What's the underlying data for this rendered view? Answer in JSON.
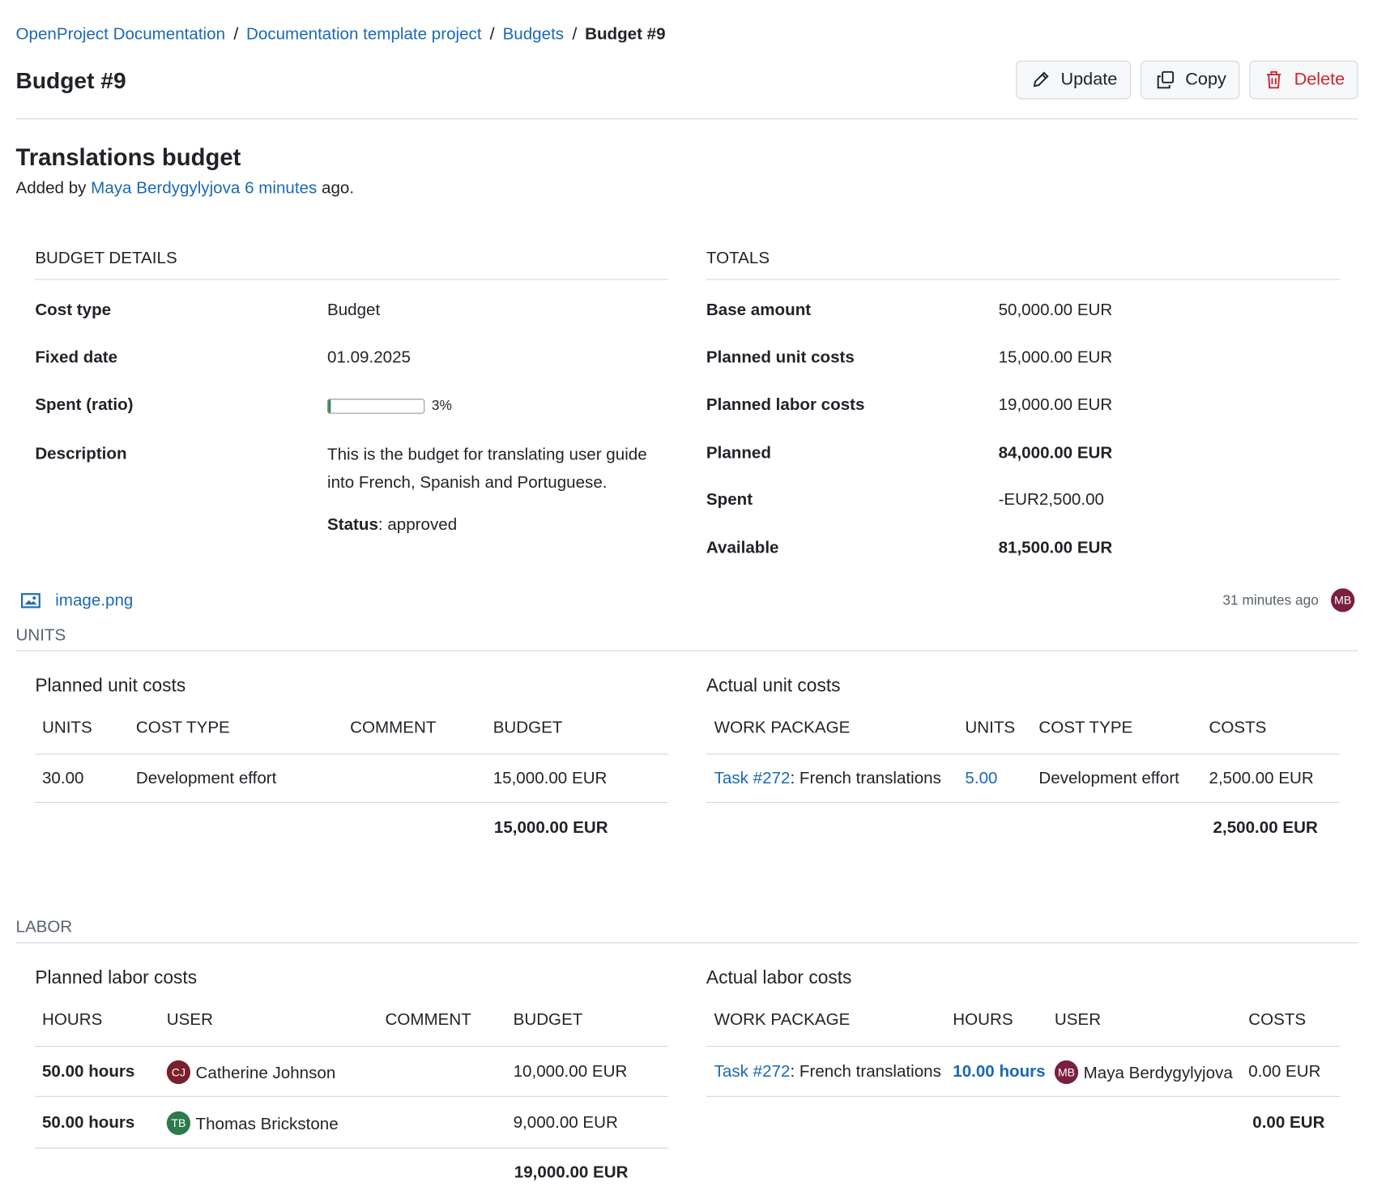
{
  "breadcrumb": {
    "items": [
      "OpenProject Documentation",
      "Documentation template project",
      "Budgets"
    ],
    "current": "Budget #9"
  },
  "header": {
    "title": "Budget #9",
    "buttons": {
      "update": "Update",
      "copy": "Copy",
      "delete": "Delete"
    }
  },
  "budget": {
    "subject": "Translations budget",
    "added_by": "Added by",
    "author": "Maya Berdygylyjova",
    "time": "6 minutes",
    "ago": "ago."
  },
  "details": {
    "heading": "BUDGET DETAILS",
    "cost_type_label": "Cost type",
    "cost_type": "Budget",
    "fixed_date_label": "Fixed date",
    "fixed_date": "01.09.2025",
    "spent_ratio_label": "Spent (ratio)",
    "spent_ratio": {
      "value": 3,
      "label": "3%"
    },
    "description_label": "Description",
    "description": "This is the budget for translating user guide into French, Spanish and Portuguese.",
    "status_label": "Status",
    "status": ": approved"
  },
  "totals": {
    "heading": "TOTALS",
    "rows": [
      {
        "label": "Base amount",
        "value": "50,000.00 EUR"
      },
      {
        "label": "Planned unit costs",
        "value": "15,000.00 EUR"
      },
      {
        "label": "Planned labor costs",
        "value": "19,000.00 EUR"
      },
      {
        "label": "Planned",
        "value": "84,000.00 EUR",
        "bold": true
      },
      {
        "label": "Spent",
        "value": "-EUR2,500.00"
      },
      {
        "label": "Available",
        "value": "81,500.00 EUR",
        "bold": true
      }
    ]
  },
  "attachment": {
    "name": "image.png",
    "time": "31 minutes ago",
    "author_initials": "MB"
  },
  "units": {
    "heading": "UNITS",
    "planned": {
      "title": "Planned unit costs",
      "columns": [
        "UNITS",
        "COST TYPE",
        "COMMENT",
        "BUDGET"
      ],
      "rows": [
        {
          "units": "30.00",
          "cost_type": "Development effort",
          "budget": "15,000.00 EUR"
        }
      ],
      "total": "15,000.00 EUR"
    },
    "actual": {
      "title": "Actual unit costs",
      "columns": [
        "WORK PACKAGE",
        "UNITS",
        "COST TYPE",
        "COSTS"
      ],
      "rows": [
        {
          "work_package": "Task #272",
          "subject": ": French translations",
          "units": "5.00",
          "cost_type": "Development effort",
          "costs": "2,500.00 EUR"
        }
      ],
      "total": "2,500.00 EUR"
    }
  },
  "labor": {
    "heading": "LABOR",
    "planned": {
      "title": "Planned labor costs",
      "columns": [
        "HOURS",
        "USER",
        "COMMENT",
        "BUDGET"
      ],
      "rows": [
        {
          "hours": "50.00 hours",
          "initials": "CJ",
          "user": "Catherine Johnson",
          "budget": "10,000.00 EUR"
        },
        {
          "hours": "50.00 hours",
          "initials": "TB",
          "user": "Thomas Brickstone",
          "budget": "9,000.00 EUR"
        }
      ],
      "total": "19,000.00 EUR"
    },
    "actual": {
      "title": "Actual labor costs",
      "columns": [
        "WORK PACKAGE",
        "HOURS",
        "USER",
        "COSTS"
      ],
      "rows": [
        {
          "work_package": "Task #272",
          "subject": ": French translations",
          "hours": "10.00 hours",
          "initials": "MB",
          "user": "Maya Berdygylyjova",
          "costs": "0.00 EUR"
        }
      ],
      "total": "0.00 EUR"
    }
  }
}
